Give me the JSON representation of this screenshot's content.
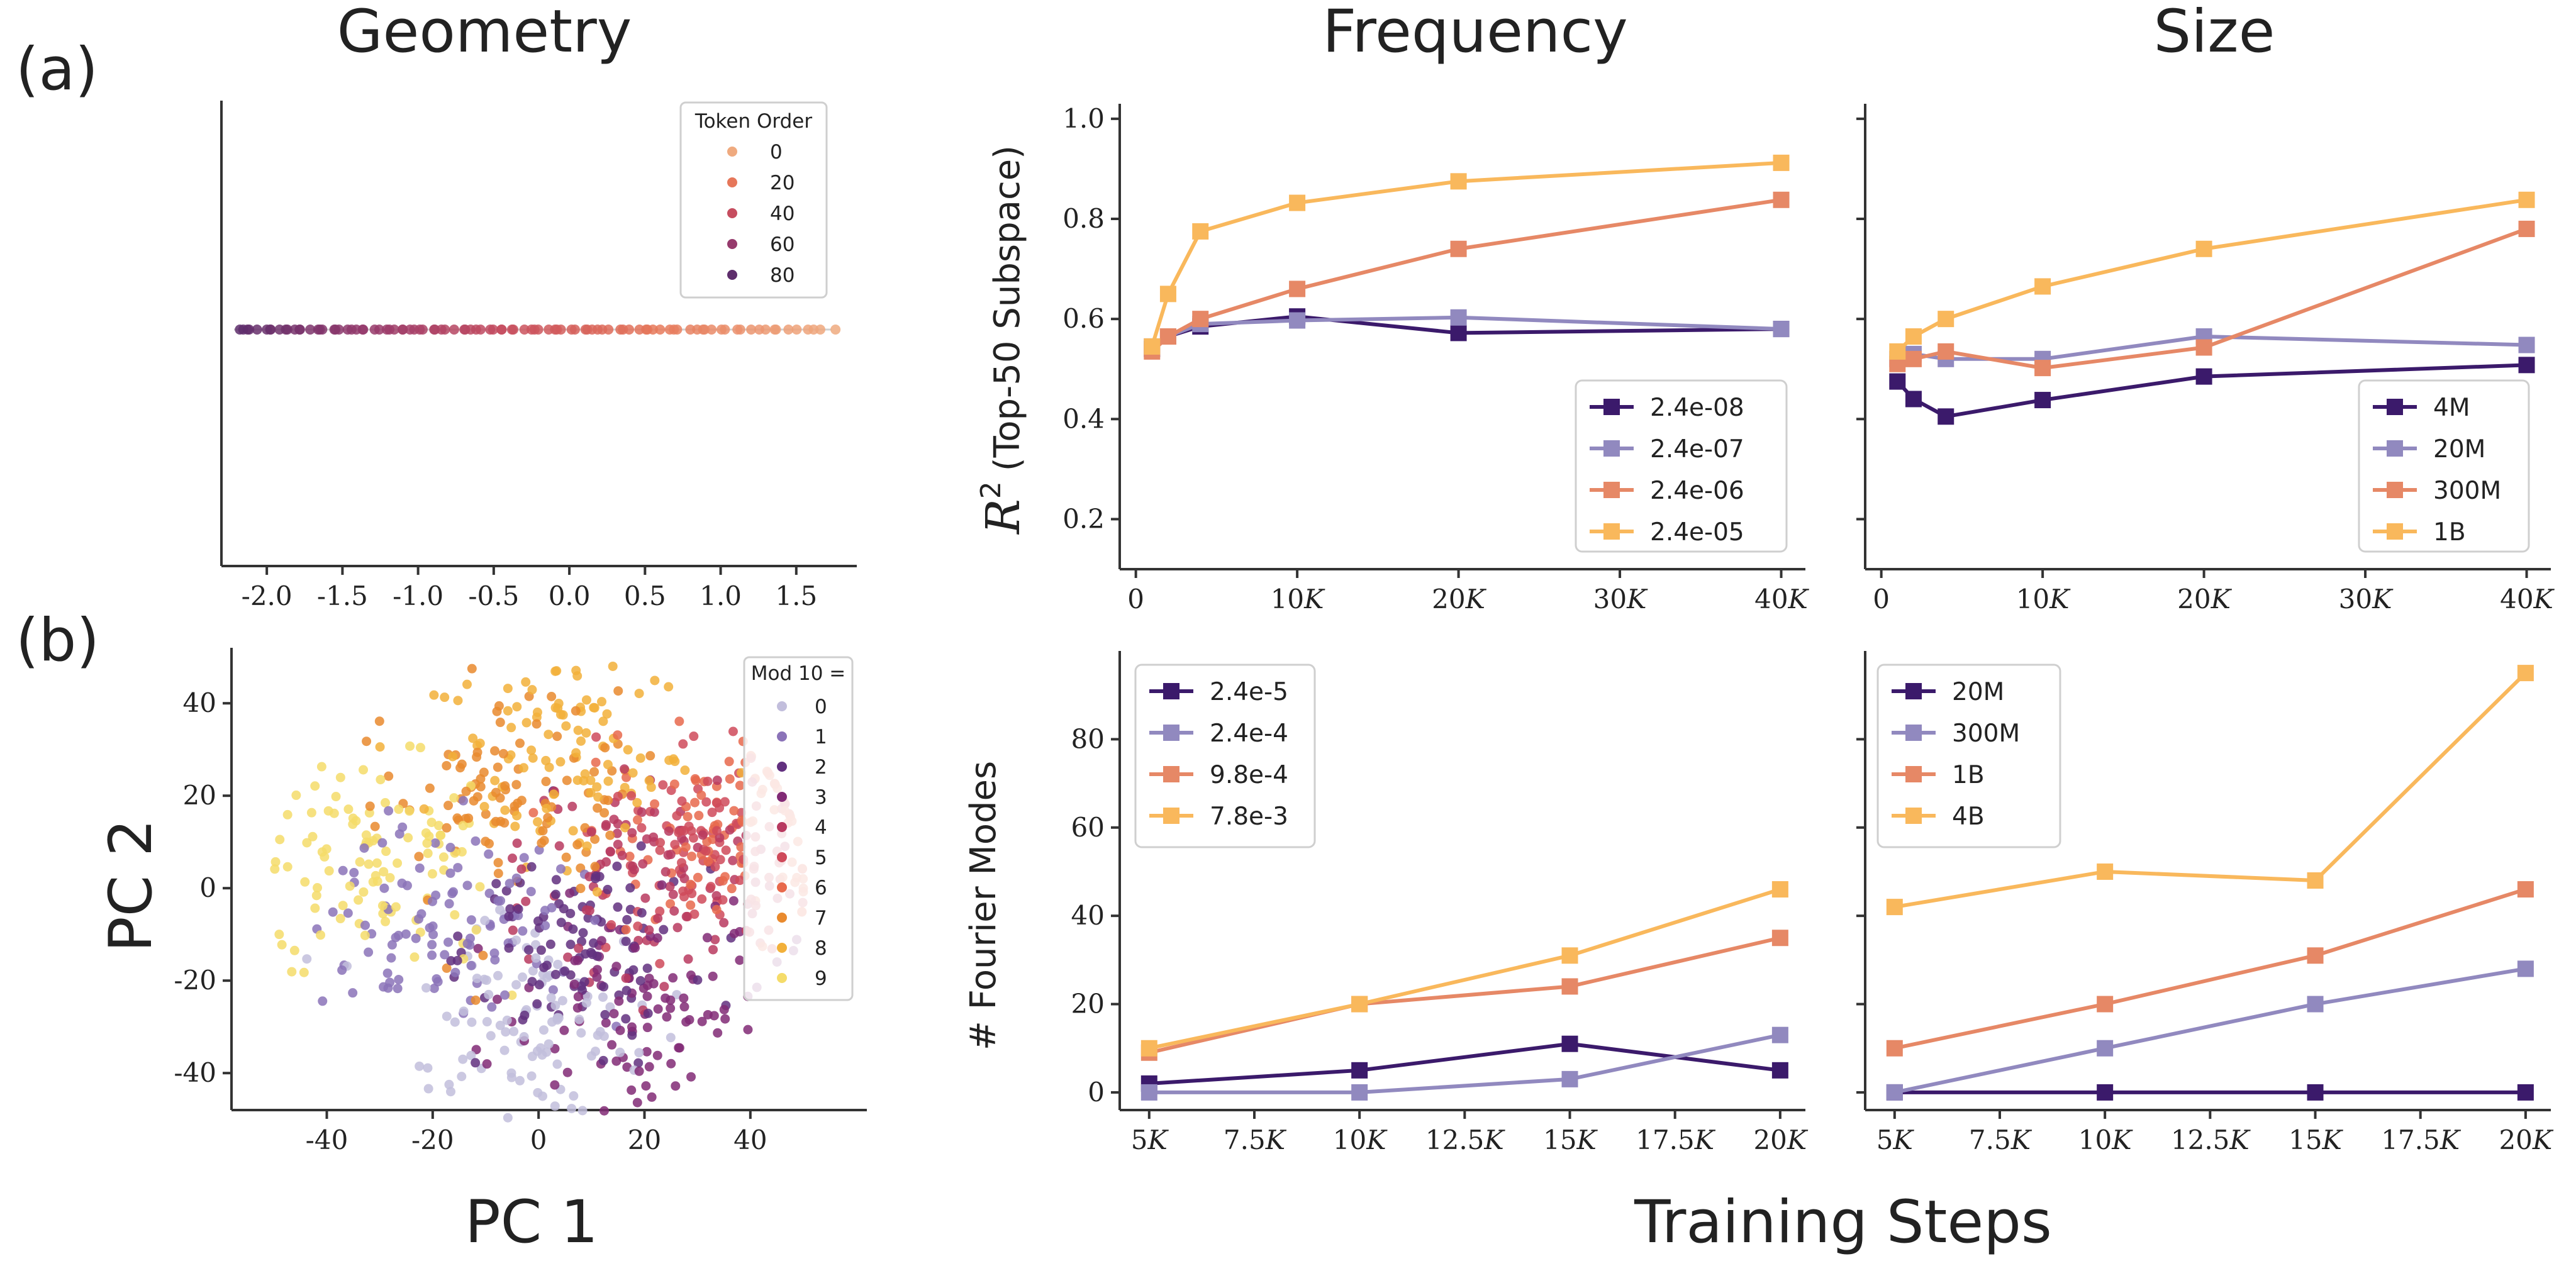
{
  "headers": {
    "a_label": "(a)",
    "b_label": "(b)",
    "geometry": "Geometry",
    "frequency": "Frequency",
    "size": "Size",
    "pc1": "PC 1",
    "pc2": "PC 2",
    "training_steps": "Training Steps",
    "r2_label": "(Top-50 Subspace)",
    "r2_symbol": "R",
    "r2_sup": "2",
    "fourier_label": "# Fourier Modes"
  },
  "chart_data": [
    {
      "id": "geometry-a",
      "type": "scatter",
      "title": "Geometry",
      "xlim": [
        -2.3,
        1.9
      ],
      "xticks": [
        "-2.0",
        "-1.5",
        "-1.0",
        "-0.5",
        "0.0",
        "0.5",
        "1.0",
        "1.5"
      ],
      "xtick_values": [
        -2.0,
        -1.5,
        -1.0,
        -0.5,
        0.0,
        0.5,
        1.0,
        1.5
      ],
      "legend_title": "Token Order",
      "legend": [
        "0",
        "20",
        "40",
        "60",
        "80"
      ],
      "legend_colors": [
        "#efaa7f",
        "#e6775a",
        "#c64d5f",
        "#963a6c",
        "#5e2e6c"
      ],
      "n_points": 100,
      "x_range": [
        -2.2,
        1.75
      ]
    },
    {
      "id": "frequency-a",
      "type": "line",
      "title": "Frequency",
      "ylabel": "R^2 (Top-50 Subspace)",
      "xlim": [
        -1000,
        41500
      ],
      "ylim": [
        0.1,
        1.03
      ],
      "xticks": [
        {
          "v": 0,
          "l": "0"
        },
        {
          "v": 10000,
          "l": "10K"
        },
        {
          "v": 20000,
          "l": "20K"
        },
        {
          "v": 30000,
          "l": "30K"
        },
        {
          "v": 40000,
          "l": "40K"
        }
      ],
      "yticks": [
        {
          "v": 0.2,
          "l": "0.2"
        },
        {
          "v": 0.4,
          "l": "0.4"
        },
        {
          "v": 0.6,
          "l": "0.6"
        },
        {
          "v": 0.8,
          "l": "0.8"
        },
        {
          "v": 1.0,
          "l": "1.0"
        }
      ],
      "x": [
        1000,
        2000,
        4000,
        10000,
        20000,
        40000
      ],
      "series": [
        {
          "name": "2.4e-08",
          "color": "#3b1a6b",
          "values": [
            0.54,
            0.565,
            0.585,
            0.605,
            0.572,
            0.58
          ]
        },
        {
          "name": "2.4e-07",
          "color": "#9189bf",
          "values": [
            0.545,
            0.565,
            0.59,
            0.597,
            0.603,
            0.58
          ]
        },
        {
          "name": "2.4e-06",
          "color": "#e68866",
          "values": [
            0.535,
            0.565,
            0.6,
            0.66,
            0.74,
            0.838
          ]
        },
        {
          "name": "2.4e-05",
          "color": "#f9b85c",
          "values": [
            0.545,
            0.65,
            0.775,
            0.832,
            0.875,
            0.912
          ]
        }
      ],
      "legend_position": "lower-right"
    },
    {
      "id": "size-a",
      "type": "line",
      "title": "Size",
      "xlim": [
        -1000,
        41500
      ],
      "ylim": [
        0.1,
        1.03
      ],
      "xticks": [
        {
          "v": 0,
          "l": "0"
        },
        {
          "v": 10000,
          "l": "10K"
        },
        {
          "v": 20000,
          "l": "20K"
        },
        {
          "v": 30000,
          "l": "30K"
        },
        {
          "v": 40000,
          "l": "40K"
        }
      ],
      "yticks": [
        {
          "v": 0.2,
          "l": ""
        },
        {
          "v": 0.4,
          "l": ""
        },
        {
          "v": 0.6,
          "l": ""
        },
        {
          "v": 0.8,
          "l": ""
        },
        {
          "v": 1.0,
          "l": ""
        }
      ],
      "x": [
        1000,
        2000,
        4000,
        10000,
        20000,
        40000
      ],
      "series": [
        {
          "name": "4M",
          "color": "#3b1a6b",
          "values": [
            0.475,
            0.44,
            0.405,
            0.438,
            0.485,
            0.508
          ]
        },
        {
          "name": "20M",
          "color": "#9189bf",
          "values": [
            0.52,
            0.53,
            0.52,
            0.52,
            0.565,
            0.548
          ]
        },
        {
          "name": "300M",
          "color": "#e68866",
          "values": [
            0.51,
            0.52,
            0.535,
            0.502,
            0.543,
            0.78
          ]
        },
        {
          "name": "1B",
          "color": "#f9b85c",
          "values": [
            0.535,
            0.565,
            0.6,
            0.665,
            0.74,
            0.838
          ]
        }
      ],
      "legend_position": "lower-right"
    },
    {
      "id": "geometry-b",
      "type": "scatter",
      "xlabel": "PC 1",
      "ylabel": "PC 2",
      "xlim": [
        -58,
        62
      ],
      "ylim": [
        -48,
        52
      ],
      "xticks": [
        {
          "v": -40,
          "l": "-40"
        },
        {
          "v": -20,
          "l": "-20"
        },
        {
          "v": 0,
          "l": "0"
        },
        {
          "v": 20,
          "l": "20"
        },
        {
          "v": 40,
          "l": "40"
        }
      ],
      "yticks": [
        {
          "v": -40,
          "l": "-40"
        },
        {
          "v": -20,
          "l": "-20"
        },
        {
          "v": 0,
          "l": "0"
        },
        {
          "v": 20,
          "l": "20"
        },
        {
          "v": 40,
          "l": "40"
        }
      ],
      "legend_title": "Mod 10 =",
      "legend": [
        "0",
        "1",
        "2",
        "3",
        "4",
        "5",
        "6",
        "7",
        "8",
        "9"
      ],
      "legend_colors": [
        "#c2bedc",
        "#8b73b8",
        "#62307f",
        "#812a75",
        "#b8395f",
        "#cf4a5a",
        "#e8694c",
        "#e98a2e",
        "#f2b03a",
        "#f5dc6a"
      ],
      "n_points": 1000
    },
    {
      "id": "frequency-b",
      "type": "line",
      "ylabel": "# Fourier Modes",
      "xlim": [
        4300,
        20600
      ],
      "ylim": [
        -4,
        100
      ],
      "xticks": [
        {
          "v": 5000,
          "l": "5K"
        },
        {
          "v": 7500,
          "l": "7.5K"
        },
        {
          "v": 10000,
          "l": "10K"
        },
        {
          "v": 12500,
          "l": "12.5K"
        },
        {
          "v": 15000,
          "l": "15K"
        },
        {
          "v": 17500,
          "l": "17.5K"
        },
        {
          "v": 20000,
          "l": "20K"
        }
      ],
      "yticks": [
        {
          "v": 0,
          "l": "0"
        },
        {
          "v": 20,
          "l": "20"
        },
        {
          "v": 40,
          "l": "40"
        },
        {
          "v": 60,
          "l": "60"
        },
        {
          "v": 80,
          "l": "80"
        }
      ],
      "x": [
        5000,
        10000,
        15000,
        20000
      ],
      "series": [
        {
          "name": "2.4e-5",
          "color": "#3b1a6b",
          "values": [
            2,
            5,
            11,
            5
          ]
        },
        {
          "name": "2.4e-4",
          "color": "#9189bf",
          "values": [
            0,
            0,
            3,
            13
          ]
        },
        {
          "name": "9.8e-4",
          "color": "#e68866",
          "values": [
            9,
            20,
            24,
            35
          ]
        },
        {
          "name": "7.8e-3",
          "color": "#f9b85c",
          "values": [
            10,
            20,
            31,
            46
          ]
        }
      ],
      "legend_position": "upper-left"
    },
    {
      "id": "size-b",
      "type": "line",
      "xlim": [
        4300,
        20600
      ],
      "ylim": [
        -4,
        100
      ],
      "xticks": [
        {
          "v": 5000,
          "l": "5K"
        },
        {
          "v": 7500,
          "l": "7.5K"
        },
        {
          "v": 10000,
          "l": "10K"
        },
        {
          "v": 12500,
          "l": "12.5K"
        },
        {
          "v": 15000,
          "l": "15K"
        },
        {
          "v": 17500,
          "l": "17.5K"
        },
        {
          "v": 20000,
          "l": "20K"
        }
      ],
      "yticks": [
        {
          "v": 0,
          "l": ""
        },
        {
          "v": 20,
          "l": ""
        },
        {
          "v": 40,
          "l": ""
        },
        {
          "v": 60,
          "l": ""
        },
        {
          "v": 80,
          "l": ""
        }
      ],
      "x": [
        5000,
        10000,
        15000,
        20000
      ],
      "series": [
        {
          "name": "20M",
          "color": "#3b1a6b",
          "values": [
            0,
            0,
            0,
            0
          ]
        },
        {
          "name": "300M",
          "color": "#9189bf",
          "values": [
            0,
            10,
            20,
            28
          ]
        },
        {
          "name": "1B",
          "color": "#e68866",
          "values": [
            10,
            20,
            31,
            46
          ]
        },
        {
          "name": "4B",
          "color": "#f9b85c",
          "values": [
            42,
            50,
            48,
            95
          ]
        }
      ],
      "legend_position": "upper-left"
    }
  ]
}
